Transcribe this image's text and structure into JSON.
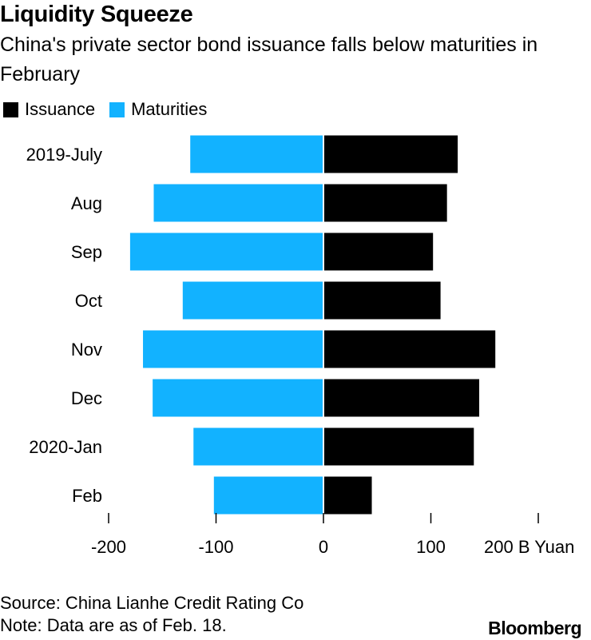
{
  "header": {
    "title": "Liquidity Squeeze",
    "subtitle": "China's private sector bond issuance falls below maturities in February"
  },
  "legend": [
    {
      "label": "Issuance",
      "color": "#000000"
    },
    {
      "label": "Maturities",
      "color": "#12b2ff"
    }
  ],
  "footer": {
    "source": "Source: China Lianhe Credit Rating Co",
    "note": "Note: Data are as of Feb. 18.",
    "brand": "Bloomberg"
  },
  "chart_data": {
    "type": "bar",
    "orientation": "horizontal",
    "stacking": "diverging",
    "categories": [
      "2019-July",
      "Aug",
      "Sep",
      "Oct",
      "Nov",
      "Dec",
      "2020-Jan",
      "Feb"
    ],
    "series": [
      {
        "name": "Issuance",
        "color": "#000000",
        "values": [
          125,
          115,
          102,
          109,
          160,
          145,
          140,
          45
        ]
      },
      {
        "name": "Maturities",
        "color": "#12b2ff",
        "values": [
          -124,
          -158,
          -180,
          -131,
          -168,
          -159,
          -121,
          -102
        ]
      }
    ],
    "xlim": [
      -200,
      200
    ],
    "xticks": [
      -200,
      -100,
      0,
      100,
      200
    ],
    "xtick_labels": [
      "-200",
      "-100",
      "0",
      "100",
      "200 B Yuan"
    ],
    "grid": false,
    "legend_position": "top-left"
  }
}
